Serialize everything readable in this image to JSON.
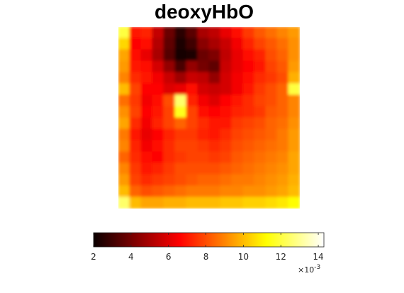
{
  "chart_data": {
    "type": "heatmap",
    "title": "deoxyHbO",
    "colormap": "hot",
    "colorbar": {
      "location": "bottom",
      "ticks": [
        2,
        4,
        6,
        8,
        10,
        12,
        14
      ],
      "tick_labels": [
        "2",
        "4",
        "6",
        "8",
        "10",
        "12",
        "14"
      ],
      "exponent_label": "×10",
      "exponent_value": "-3",
      "clim": [
        2.0,
        14.3
      ],
      "scale_factor": 0.001
    },
    "grid_size": [
      16,
      16
    ],
    "values": [
      [
        12.0,
        7.0,
        7.2,
        5.5,
        3.8,
        2.6,
        3.5,
        5.0,
        5.4,
        6.2,
        6.8,
        7.6,
        8.2,
        8.6,
        9.0,
        9.4
      ],
      [
        10.5,
        6.6,
        6.8,
        5.2,
        3.6,
        2.4,
        3.0,
        4.4,
        5.0,
        5.6,
        6.4,
        7.2,
        7.8,
        8.2,
        8.6,
        9.2
      ],
      [
        9.6,
        6.8,
        6.2,
        5.0,
        3.4,
        2.2,
        2.4,
        3.8,
        4.2,
        5.4,
        6.2,
        6.8,
        7.2,
        8.0,
        8.4,
        9.2
      ],
      [
        9.4,
        7.0,
        6.8,
        5.8,
        4.6,
        3.2,
        4.6,
        4.0,
        3.6,
        5.6,
        6.2,
        6.6,
        7.0,
        7.8,
        8.2,
        9.4
      ],
      [
        9.0,
        7.4,
        7.0,
        6.4,
        5.6,
        4.8,
        5.6,
        5.4,
        4.6,
        5.8,
        6.4,
        6.8,
        7.4,
        7.6,
        8.0,
        9.8
      ],
      [
        10.0,
        7.8,
        6.6,
        6.6,
        6.0,
        6.2,
        6.8,
        5.8,
        5.6,
        5.8,
        6.4,
        7.0,
        7.6,
        8.0,
        8.4,
        12.0
      ],
      [
        8.6,
        7.6,
        6.4,
        6.8,
        8.0,
        12.5,
        7.2,
        6.4,
        6.0,
        6.6,
        7.0,
        7.4,
        7.8,
        8.0,
        8.4,
        9.0
      ],
      [
        9.2,
        7.8,
        6.6,
        7.0,
        7.8,
        11.6,
        7.8,
        6.8,
        6.6,
        6.8,
        7.2,
        7.4,
        7.6,
        8.2,
        8.4,
        9.0
      ],
      [
        9.6,
        7.4,
        6.4,
        7.2,
        7.8,
        8.4,
        7.8,
        7.4,
        7.0,
        7.0,
        7.6,
        7.8,
        8.0,
        8.4,
        8.6,
        9.2
      ],
      [
        8.8,
        7.0,
        6.2,
        6.6,
        7.2,
        7.6,
        7.6,
        7.2,
        7.0,
        7.4,
        7.8,
        8.0,
        8.2,
        8.4,
        8.8,
        9.4
      ],
      [
        9.0,
        7.2,
        6.4,
        6.8,
        7.4,
        7.8,
        7.8,
        7.6,
        7.4,
        7.6,
        8.0,
        8.2,
        8.4,
        8.6,
        8.8,
        9.4
      ],
      [
        8.4,
        7.4,
        6.8,
        6.6,
        7.4,
        7.6,
        7.8,
        7.8,
        7.6,
        7.8,
        8.2,
        8.4,
        8.6,
        8.8,
        9.0,
        9.6
      ],
      [
        9.0,
        7.6,
        7.0,
        7.2,
        7.6,
        8.0,
        8.0,
        8.0,
        8.0,
        8.2,
        8.4,
        8.6,
        8.8,
        9.0,
        9.2,
        9.6
      ],
      [
        9.4,
        7.8,
        7.4,
        7.6,
        7.8,
        8.0,
        8.2,
        8.4,
        8.4,
        8.6,
        8.8,
        8.8,
        9.0,
        9.2,
        9.4,
        9.8
      ],
      [
        10.0,
        8.4,
        8.0,
        8.2,
        8.4,
        8.6,
        8.8,
        8.8,
        8.8,
        9.0,
        9.0,
        9.2,
        9.2,
        9.4,
        9.6,
        10.0
      ],
      [
        12.5,
        10.0,
        9.6,
        9.6,
        9.8,
        9.8,
        10.0,
        10.0,
        10.0,
        10.2,
        10.2,
        10.4,
        10.4,
        10.6,
        10.8,
        11.2
      ]
    ]
  }
}
